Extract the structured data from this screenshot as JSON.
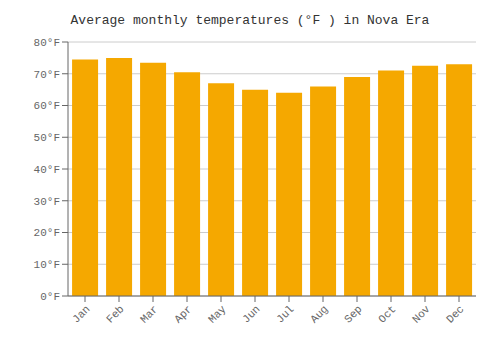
{
  "chart_data": {
    "type": "bar",
    "title": "Average monthly temperatures (°F ) in Nova Era",
    "categories": [
      "Jan",
      "Feb",
      "Mar",
      "Apr",
      "May",
      "Jun",
      "Jul",
      "Aug",
      "Sep",
      "Oct",
      "Nov",
      "Dec"
    ],
    "values": [
      74.5,
      75.0,
      73.5,
      70.5,
      67.0,
      65.0,
      64.0,
      66.0,
      69.0,
      71.0,
      72.5,
      73.0
    ],
    "color": "#F5A800",
    "ylim": [
      0,
      80
    ],
    "yticks": [
      {
        "value": 0,
        "label": "0°F"
      },
      {
        "value": 10,
        "label": "10°F"
      },
      {
        "value": 20,
        "label": "20°F"
      },
      {
        "value": 30,
        "label": "30°F"
      },
      {
        "value": 40,
        "label": "40°F"
      },
      {
        "value": 50,
        "label": "50°F"
      },
      {
        "value": 60,
        "label": "60°F"
      },
      {
        "value": 70,
        "label": "70°F"
      },
      {
        "value": 80,
        "label": "80°F"
      }
    ],
    "grid": true
  }
}
